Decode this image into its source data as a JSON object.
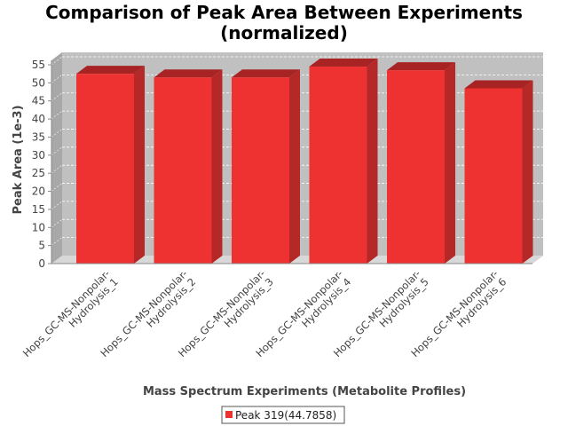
{
  "chart_data": {
    "type": "bar",
    "title_lines": [
      "Comparison of Peak Area Between Experiments",
      "(normalized)"
    ],
    "xlabel": "Mass Spectrum Experiments (Metabolite Profiles)",
    "ylabel": "Peak Area (1e-3)",
    "ylim": [
      0,
      55
    ],
    "yticks": [
      0,
      5,
      10,
      15,
      20,
      25,
      30,
      35,
      40,
      45,
      50,
      55
    ],
    "categories": [
      [
        "Hops_GC-MS-Nonpolar-",
        "Hydrolysis_1"
      ],
      [
        "Hops_GC-MS-Nonpolar-",
        "Hydrolysis_2"
      ],
      [
        "Hops_GC-MS-Nonpolar-",
        "Hydrolysis_3"
      ],
      [
        "Hops_GC-MS-Nonpolar-",
        "Hydrolysis_4"
      ],
      [
        "Hops_GC-MS-Nonpolar-",
        "Hydrolysis_5"
      ],
      [
        "Hops_GC-MS-Nonpolar-",
        "Hydrolysis_6"
      ]
    ],
    "series": [
      {
        "name": "Peak 319(44.7858)",
        "values": [
          52.5,
          51.5,
          51.5,
          54.5,
          53.5,
          48.5
        ]
      }
    ],
    "grid": true,
    "legend_position": "bottom",
    "colors": {
      "bar_front": "#ee3232",
      "bar_side": "#b42828",
      "bar_top": "#a82424",
      "plot_bg": "#c0c0c0",
      "plot_wall": "#a8a8a8",
      "grid": "#ffffff"
    }
  }
}
